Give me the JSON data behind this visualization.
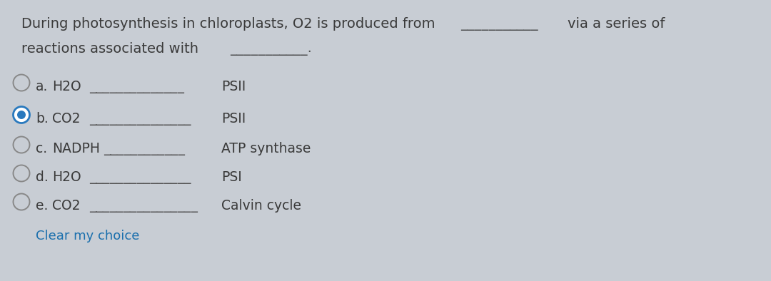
{
  "bg_color": "#c8cdd4",
  "text_color": "#3a3a3a",
  "question_line1": "During photosynthesis in chloroplasts, O2 is produced from —————————— via a series of",
  "question_line2": "reactions associated with ——————————.",
  "q1_dashes": "___________",
  "q2_dashes": "__________",
  "options": [
    {
      "label": "a.",
      "molecule": "H2O",
      "dashes": "______________",
      "reaction": "PSII",
      "selected": false
    },
    {
      "label": "b.",
      "molecule": "CO2",
      "dashes": "_______________",
      "reaction": "PSII",
      "selected": true
    },
    {
      "label": "c.",
      "molecule": "NADPH",
      "dashes": "____________",
      "reaction": "ATP synthase",
      "selected": false
    },
    {
      "label": "d.",
      "molecule": "H2O",
      "dashes": "_______________",
      "reaction": "PSI",
      "selected": false
    },
    {
      "label": "e.",
      "molecule": "CO2",
      "dashes": "________________",
      "reaction": "Calvin cycle",
      "selected": false
    }
  ],
  "clear_text": "Clear my choice",
  "clear_color": "#1a6fad",
  "font_size_question": 14.0,
  "font_size_option": 13.5,
  "font_size_clear": 13.0,
  "radio_unselected_edge": "#888888",
  "radio_selected_ring": "#2979be",
  "radio_selected_dot": "#2979be"
}
